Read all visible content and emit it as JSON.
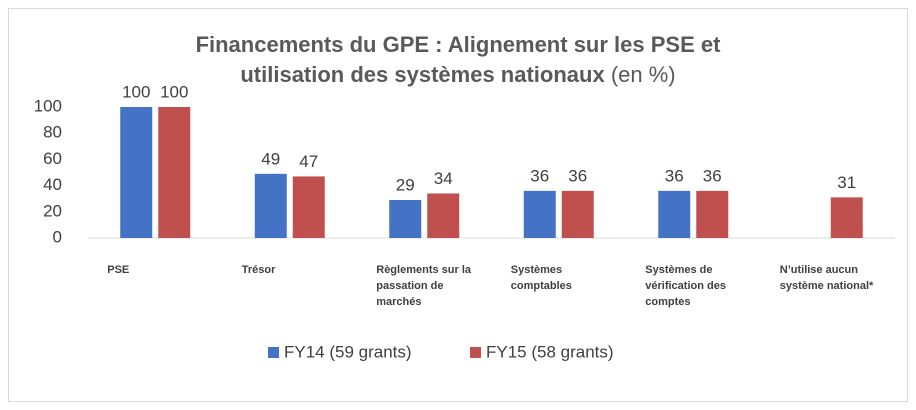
{
  "chart_data": {
    "type": "bar",
    "title": "Financements du GPE : Alignement sur les PSE et utilisation des systèmes nationaux",
    "subtitle": "(en %)",
    "categories": [
      "PSE",
      "Trésor",
      "Règlements sur la passation de marchés",
      "Systèmes comptables",
      "Systèmes de vérification des comptes",
      "N’utilise aucun système national*"
    ],
    "series": [
      {
        "name": "FY14 (59 grants)",
        "color": "#4472c4",
        "values": [
          100,
          49,
          29,
          36,
          36,
          null
        ]
      },
      {
        "name": "FY15 (58 grants)",
        "color": "#c0504d",
        "values": [
          100,
          47,
          34,
          36,
          36,
          31
        ]
      }
    ],
    "ylim": [
      0,
      100
    ],
    "yticks": [
      0,
      20,
      40,
      60,
      80,
      100
    ],
    "grid": false,
    "legend": "bottom"
  }
}
